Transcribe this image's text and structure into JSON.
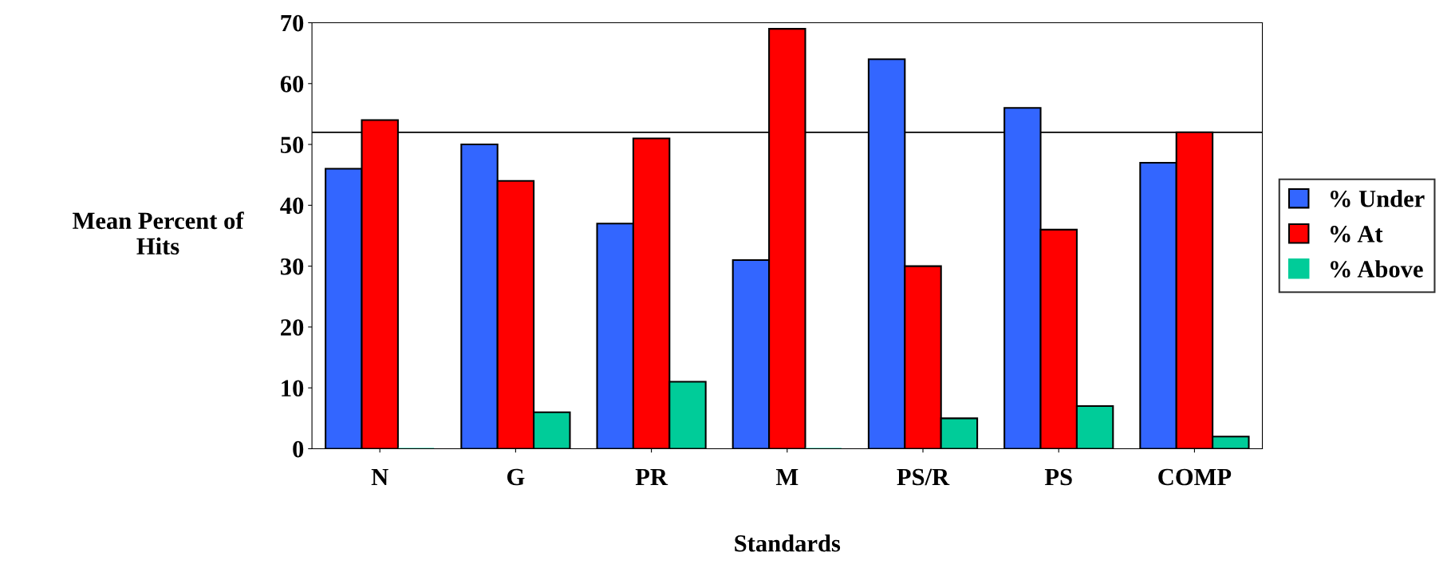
{
  "chart_data": {
    "type": "bar",
    "xlabel": "Standards",
    "ylabel": "Mean Percent of\nHits",
    "categories": [
      "N",
      "G",
      "PR",
      "M",
      "PS/R",
      "PS",
      "COMP"
    ],
    "series": [
      {
        "name": "% Under",
        "color": "#3366ff",
        "values": [
          46,
          50,
          37,
          31,
          64,
          56,
          47
        ]
      },
      {
        "name": "% At",
        "color": "#ff0000",
        "values": [
          54,
          44,
          51,
          69,
          30,
          36,
          52
        ]
      },
      {
        "name": "% Above",
        "color": "#00cc99",
        "values": [
          0,
          6,
          11,
          0,
          5,
          7,
          2
        ]
      }
    ],
    "ylim": [
      0,
      70
    ],
    "yticks": [
      0,
      10,
      20,
      30,
      40,
      50,
      60,
      70
    ],
    "ref_lines": [
      {
        "axis": "y",
        "value": 52,
        "color": "#000000",
        "line_style": "solid"
      }
    ],
    "grid": false,
    "legend": "right"
  }
}
